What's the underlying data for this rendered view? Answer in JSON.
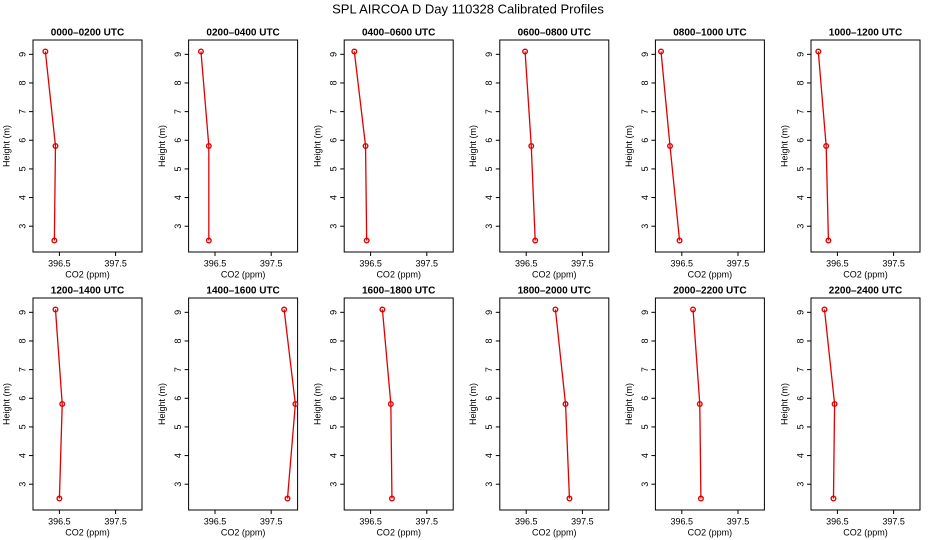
{
  "title": "SPL AIRCOA D  Day 110328  Calibrated Profiles",
  "chart_data": [
    {
      "type": "line",
      "title": "0000–0200 UTC",
      "xlabel": "CO2 (ppm)",
      "ylabel": "Height (m)",
      "color": "#e00000",
      "x": [
        396.25,
        396.43,
        396.41
      ],
      "values": [
        9.1,
        5.8,
        2.5
      ],
      "xlim": [
        396.03,
        397.97
      ],
      "xticks": [
        396.5,
        397.5
      ],
      "ylim": [
        2.1,
        9.5
      ],
      "yticks": [
        3,
        4,
        5,
        6,
        7,
        8,
        9
      ]
    },
    {
      "type": "line",
      "title": "0200–0400 UTC",
      "xlabel": "CO2 (ppm)",
      "ylabel": "Height (m)",
      "color": "#e00000",
      "x": [
        396.25,
        396.39,
        396.39
      ],
      "values": [
        9.1,
        5.8,
        2.5
      ],
      "xlim": [
        396.03,
        397.97
      ],
      "xticks": [
        396.5,
        397.5
      ],
      "ylim": [
        2.1,
        9.5
      ],
      "yticks": [
        3,
        4,
        5,
        6,
        7,
        8,
        9
      ]
    },
    {
      "type": "line",
      "title": "0400–0600 UTC",
      "xlabel": "CO2 (ppm)",
      "ylabel": "Height (m)",
      "color": "#e00000",
      "x": [
        396.21,
        396.41,
        396.43
      ],
      "values": [
        9.1,
        5.8,
        2.5
      ],
      "xlim": [
        396.03,
        397.97
      ],
      "xticks": [
        396.5,
        397.5
      ],
      "ylim": [
        2.1,
        9.5
      ],
      "yticks": [
        3,
        4,
        5,
        6,
        7,
        8,
        9
      ]
    },
    {
      "type": "line",
      "title": "0600–0800 UTC",
      "xlabel": "CO2 (ppm)",
      "ylabel": "Height (m)",
      "color": "#e00000",
      "x": [
        396.48,
        396.59,
        396.66
      ],
      "values": [
        9.1,
        5.8,
        2.5
      ],
      "xlim": [
        396.03,
        397.97
      ],
      "xticks": [
        396.5,
        397.5
      ],
      "ylim": [
        2.1,
        9.5
      ],
      "yticks": [
        3,
        4,
        5,
        6,
        7,
        8,
        9
      ]
    },
    {
      "type": "line",
      "title": "0800–1000 UTC",
      "xlabel": "CO2 (ppm)",
      "ylabel": "Height (m)",
      "color": "#e00000",
      "x": [
        396.13,
        396.29,
        396.46
      ],
      "values": [
        9.1,
        5.8,
        2.5
      ],
      "xlim": [
        396.03,
        397.97
      ],
      "xticks": [
        396.5,
        397.5
      ],
      "ylim": [
        2.1,
        9.5
      ],
      "yticks": [
        3,
        4,
        5,
        6,
        7,
        8,
        9
      ]
    },
    {
      "type": "line",
      "title": "1000–1200 UTC",
      "xlabel": "CO2 (ppm)",
      "ylabel": "Height (m)",
      "color": "#e00000",
      "x": [
        396.16,
        396.3,
        396.34
      ],
      "values": [
        9.1,
        5.8,
        2.5
      ],
      "xlim": [
        396.03,
        397.97
      ],
      "xticks": [
        396.5,
        397.5
      ],
      "ylim": [
        2.1,
        9.5
      ],
      "yticks": [
        3,
        4,
        5,
        6,
        7,
        8,
        9
      ]
    },
    {
      "type": "line",
      "title": "1200–1400 UTC",
      "xlabel": "CO2 (ppm)",
      "ylabel": "Height (m)",
      "color": "#e00000",
      "x": [
        396.43,
        396.55,
        396.5
      ],
      "values": [
        9.1,
        5.8,
        2.5
      ],
      "xlim": [
        396.03,
        397.97
      ],
      "xticks": [
        396.5,
        397.5
      ],
      "ylim": [
        2.1,
        9.5
      ],
      "yticks": [
        3,
        4,
        5,
        6,
        7,
        8,
        9
      ]
    },
    {
      "type": "line",
      "title": "1400–1600 UTC",
      "xlabel": "CO2 (ppm)",
      "ylabel": "Height (m)",
      "color": "#e00000",
      "x": [
        397.73,
        397.93,
        397.79
      ],
      "values": [
        9.1,
        5.8,
        2.5
      ],
      "xlim": [
        396.03,
        397.97
      ],
      "xticks": [
        396.5,
        397.5
      ],
      "ylim": [
        2.1,
        9.5
      ],
      "yticks": [
        3,
        4,
        5,
        6,
        7,
        8,
        9
      ]
    },
    {
      "type": "line",
      "title": "1600–1800 UTC",
      "xlabel": "CO2 (ppm)",
      "ylabel": "Height (m)",
      "color": "#e00000",
      "x": [
        396.71,
        396.86,
        396.88
      ],
      "values": [
        9.1,
        5.8,
        2.5
      ],
      "xlim": [
        396.03,
        397.97
      ],
      "xticks": [
        396.5,
        397.5
      ],
      "ylim": [
        2.1,
        9.5
      ],
      "yticks": [
        3,
        4,
        5,
        6,
        7,
        8,
        9
      ]
    },
    {
      "type": "line",
      "title": "1800–2000 UTC",
      "xlabel": "CO2 (ppm)",
      "ylabel": "Height (m)",
      "color": "#e00000",
      "x": [
        397.02,
        397.2,
        397.27
      ],
      "values": [
        9.1,
        5.8,
        2.5
      ],
      "xlim": [
        396.03,
        397.97
      ],
      "xticks": [
        396.5,
        397.5
      ],
      "ylim": [
        2.1,
        9.5
      ],
      "yticks": [
        3,
        4,
        5,
        6,
        7,
        8,
        9
      ]
    },
    {
      "type": "line",
      "title": "2000–2200 UTC",
      "xlabel": "CO2 (ppm)",
      "ylabel": "Height (m)",
      "color": "#e00000",
      "x": [
        396.7,
        396.82,
        396.84
      ],
      "values": [
        9.1,
        5.8,
        2.5
      ],
      "xlim": [
        396.03,
        397.97
      ],
      "xticks": [
        396.5,
        397.5
      ],
      "ylim": [
        2.1,
        9.5
      ],
      "yticks": [
        3,
        4,
        5,
        6,
        7,
        8,
        9
      ]
    },
    {
      "type": "line",
      "title": "2200–2400 UTC",
      "xlabel": "CO2 (ppm)",
      "ylabel": "Height (m)",
      "color": "#e00000",
      "x": [
        396.27,
        396.45,
        396.43
      ],
      "values": [
        9.1,
        5.8,
        2.5
      ],
      "xlim": [
        396.03,
        397.97
      ],
      "xticks": [
        396.5,
        397.5
      ],
      "ylim": [
        2.1,
        9.5
      ],
      "yticks": [
        3,
        4,
        5,
        6,
        7,
        8,
        9
      ]
    }
  ]
}
